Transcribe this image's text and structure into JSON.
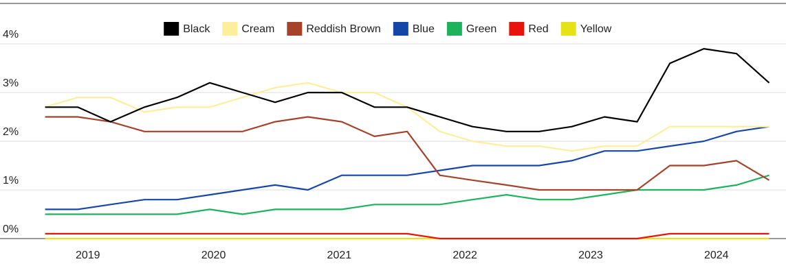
{
  "chart_data": {
    "type": "line",
    "x": [
      2018.66,
      2018.92,
      2019.18,
      2019.45,
      2019.71,
      2019.97,
      2020.23,
      2020.49,
      2020.75,
      2021.02,
      2021.28,
      2021.54,
      2021.8,
      2022.06,
      2022.33,
      2022.59,
      2022.85,
      2023.11,
      2023.37,
      2023.63,
      2023.9,
      2024.16,
      2024.42
    ],
    "xlim": [
      2018.52,
      2024.51
    ],
    "xticks": [
      2019,
      2020,
      2021,
      2022,
      2023,
      2024
    ],
    "ylim": [
      0,
      4
    ],
    "yticks": [
      {
        "value": 0,
        "label": "0%"
      },
      {
        "value": 1,
        "label": "1%"
      },
      {
        "value": 2,
        "label": "2%"
      },
      {
        "value": 3,
        "label": "3%"
      },
      {
        "value": 4,
        "label": "4%"
      }
    ],
    "grid": true,
    "legend": "top",
    "series": [
      {
        "name": "Black",
        "color": "#000000",
        "values": [
          2.7,
          2.7,
          2.4,
          2.7,
          2.9,
          3.2,
          3.0,
          2.8,
          3.0,
          3.0,
          2.7,
          2.7,
          2.5,
          2.3,
          2.2,
          2.2,
          2.3,
          2.5,
          2.4,
          3.6,
          3.9,
          3.8,
          3.2
        ]
      },
      {
        "name": "Cream",
        "color": "#fdee9b",
        "values": [
          2.7,
          2.9,
          2.9,
          2.6,
          2.7,
          2.7,
          2.9,
          3.1,
          3.2,
          3.0,
          3.0,
          2.7,
          2.2,
          2.0,
          1.9,
          1.9,
          1.8,
          1.9,
          1.9,
          2.3,
          2.3,
          2.3,
          2.3
        ]
      },
      {
        "name": "Reddish Brown",
        "color": "#a5422a",
        "values": [
          2.5,
          2.5,
          2.4,
          2.2,
          2.2,
          2.2,
          2.2,
          2.4,
          2.5,
          2.4,
          2.1,
          2.2,
          1.3,
          1.2,
          1.1,
          1.0,
          1.0,
          1.0,
          1.0,
          1.5,
          1.5,
          1.6,
          1.2
        ]
      },
      {
        "name": "Blue",
        "color": "#1547a8",
        "values": [
          0.6,
          0.6,
          0.7,
          0.8,
          0.8,
          0.9,
          1.0,
          1.1,
          1.0,
          1.3,
          1.3,
          1.3,
          1.4,
          1.5,
          1.5,
          1.5,
          1.6,
          1.8,
          1.8,
          1.9,
          2.0,
          2.2,
          2.3
        ]
      },
      {
        "name": "Green",
        "color": "#1db35c",
        "values": [
          0.5,
          0.5,
          0.5,
          0.5,
          0.5,
          0.6,
          0.5,
          0.6,
          0.6,
          0.6,
          0.7,
          0.7,
          0.7,
          0.8,
          0.9,
          0.8,
          0.8,
          0.9,
          1.0,
          1.0,
          1.0,
          1.1,
          1.3
        ]
      },
      {
        "name": "Red",
        "color": "#e8130c",
        "values": [
          0.1,
          0.1,
          0.1,
          0.1,
          0.1,
          0.1,
          0.1,
          0.1,
          0.1,
          0.1,
          0.1,
          0.1,
          0,
          0,
          0,
          0,
          0,
          0,
          0,
          0.1,
          0.1,
          0.1,
          0.1
        ]
      },
      {
        "name": "Yellow",
        "color": "#e6e21a",
        "values": [
          0,
          0,
          0,
          0,
          0,
          0,
          0,
          0,
          0,
          0,
          0,
          0,
          0,
          0,
          0,
          0,
          0,
          0,
          0,
          0,
          0,
          0,
          0
        ]
      }
    ]
  }
}
